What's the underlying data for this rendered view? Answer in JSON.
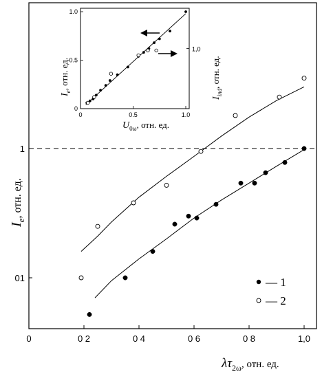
{
  "chart_data": [
    {
      "type": "scatter",
      "title": "",
      "xlabel_sym": "λτ",
      "xlabel_sub": "2ω",
      "xlabel_unit": ", отн. ед.",
      "ylabel_sym": "I",
      "ylabel_sub": "e",
      "ylabel_unit": ", отн. ед.",
      "x_ticks": [
        "0",
        "0 2",
        "0 4",
        "0 6",
        "0 8",
        "1,0"
      ],
      "x_tick_values": [
        0,
        0.2,
        0.4,
        0.6,
        0.8,
        1.0
      ],
      "y_ticks": [
        "01",
        "1"
      ],
      "y_tick_values": [
        0.1,
        1
      ],
      "xlim": [
        0,
        1.02
      ],
      "ylim": [
        0.045,
        10
      ],
      "yscale": "log",
      "reference_line_y": 1,
      "series": [
        {
          "name": "1",
          "marker": "filled-circle",
          "points": [
            [
              0.22,
              0.052
            ],
            [
              0.35,
              0.1
            ],
            [
              0.45,
              0.16
            ],
            [
              0.53,
              0.26
            ],
            [
              0.58,
              0.3
            ],
            [
              0.61,
              0.29
            ],
            [
              0.68,
              0.37
            ],
            [
              0.77,
              0.54
            ],
            [
              0.82,
              0.54
            ],
            [
              0.86,
              0.65
            ],
            [
              0.93,
              0.78
            ],
            [
              1.0,
              1.0
            ]
          ],
          "fit": [
            [
              0.24,
              0.07
            ],
            [
              0.3,
              0.095
            ],
            [
              0.4,
              0.14
            ],
            [
              0.5,
              0.2
            ],
            [
              0.6,
              0.29
            ],
            [
              0.7,
              0.4
            ],
            [
              0.8,
              0.54
            ],
            [
              0.9,
              0.73
            ],
            [
              1.0,
              0.98
            ]
          ]
        },
        {
          "name": "2",
          "marker": "open-circle",
          "points": [
            [
              0.19,
              0.1
            ],
            [
              0.25,
              0.25
            ],
            [
              0.38,
              0.38
            ],
            [
              0.5,
              0.52
            ],
            [
              0.625,
              0.95
            ],
            [
              0.75,
              1.8
            ],
            [
              0.91,
              2.5
            ],
            [
              1.0,
              3.5
            ]
          ],
          "fit": [
            [
              0.19,
              0.16
            ],
            [
              0.25,
              0.21
            ],
            [
              0.3,
              0.27
            ],
            [
              0.4,
              0.42
            ],
            [
              0.5,
              0.61
            ],
            [
              0.6,
              0.87
            ],
            [
              0.7,
              1.25
            ],
            [
              0.8,
              1.75
            ],
            [
              0.9,
              2.35
            ],
            [
              1.0,
              3.0
            ]
          ]
        }
      ],
      "legend": [
        {
          "marker": "filled-circle",
          "label": "— 1"
        },
        {
          "marker": "open-circle",
          "label": "— 2"
        }
      ],
      "legend_position": "bottom-right"
    },
    {
      "type": "scatter",
      "title": "",
      "xlabel_sym": "U",
      "xlabel_sub": "0ω",
      "xlabel_unit": ", отн. ед.",
      "ylabel_left_sym": "I",
      "ylabel_left_sub": "e",
      "ylabel_left_unit": ", отн. ед.",
      "ylabel_right_sym": "I",
      "ylabel_right_sub": "ind",
      "ylabel_right_unit": ", отн. ед.",
      "x_ticks": [
        "0",
        "0.5",
        "1.0"
      ],
      "x_tick_values": [
        0,
        0.5,
        1.0
      ],
      "y_ticks_left": [
        "0",
        "0.5",
        "1.0"
      ],
      "y_tick_values_left": [
        0,
        0.5,
        1.0
      ],
      "y_ticks_right": [
        "1,0"
      ],
      "y_tick_values_right": [
        0.62
      ],
      "xlim": [
        0,
        1.05
      ],
      "ylim": [
        0,
        1.02
      ],
      "arrow_left_points_to": "left axis",
      "arrow_right_points_to": "right axis",
      "series": [
        {
          "name": "",
          "marker": "filled-circle",
          "points": [
            [
              0.06,
              0.06
            ],
            [
              0.09,
              0.08
            ],
            [
              0.12,
              0.1
            ],
            [
              0.15,
              0.14
            ],
            [
              0.19,
              0.19
            ],
            [
              0.24,
              0.24
            ],
            [
              0.28,
              0.29
            ],
            [
              0.35,
              0.35
            ],
            [
              0.45,
              0.43
            ],
            [
              0.55,
              0.54
            ],
            [
              0.6,
              0.58
            ],
            [
              0.65,
              0.62
            ],
            [
              0.7,
              0.68
            ],
            [
              0.75,
              0.72
            ],
            [
              0.85,
              0.8
            ],
            [
              1.0,
              1.0
            ]
          ]
        },
        {
          "name": "",
          "marker": "open-circle",
          "points": [
            [
              0.07,
              0.06
            ],
            [
              0.13,
              0.12
            ],
            [
              0.29,
              0.36
            ],
            [
              0.55,
              0.55
            ],
            [
              0.64,
              0.6
            ],
            [
              0.72,
              0.6
            ]
          ]
        }
      ],
      "fit": [
        [
          0.05,
          0.04
        ],
        [
          1.0,
          0.98
        ]
      ]
    }
  ]
}
